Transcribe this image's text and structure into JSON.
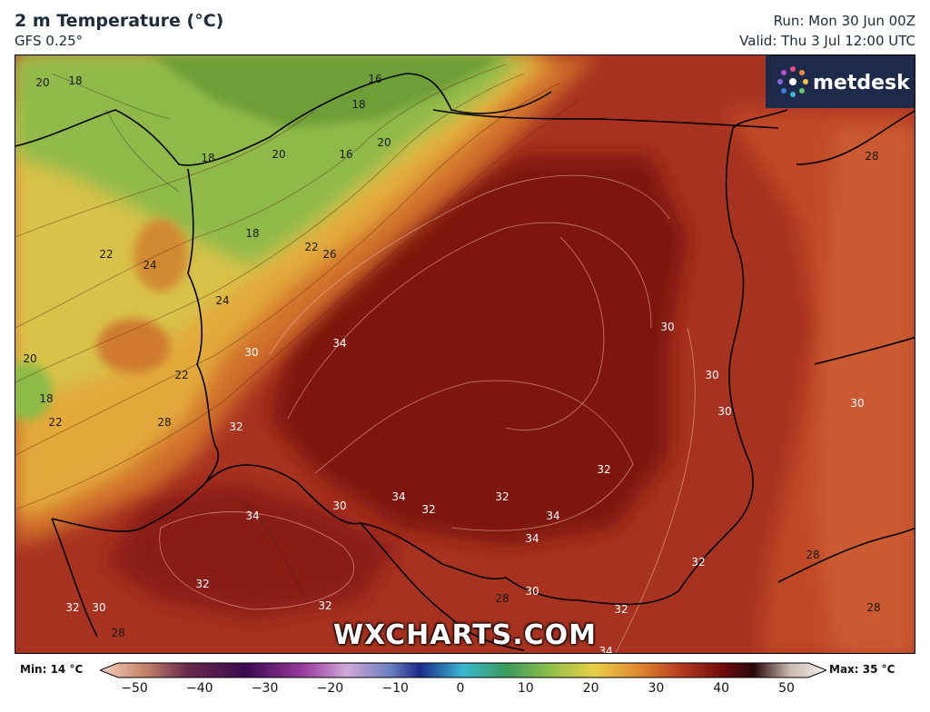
{
  "header": {
    "title": "2 m Temperature (°C)",
    "model": "GFS 0.25°",
    "run": "Run: Mon 30 Jun 00Z",
    "valid": "Valid: Thu 3 Jul 12:00 UTC"
  },
  "branding": {
    "logo_text": "metdesk",
    "watermark": "WXCHARTS.COM"
  },
  "colorbar": {
    "min_label": "Min: 14 °C",
    "max_label": "Max: 35 °C",
    "ticks": [
      "−50",
      "−40",
      "−30",
      "−20",
      "−10",
      "0",
      "10",
      "20",
      "30",
      "40",
      "50"
    ]
  },
  "isotherm_labels": [
    {
      "text": "20",
      "color": "dark"
    },
    {
      "text": "18",
      "color": "dark"
    },
    {
      "text": "16",
      "color": "dark"
    },
    {
      "text": "18",
      "color": "dark"
    },
    {
      "text": "20",
      "color": "dark"
    },
    {
      "text": "16",
      "color": "dark"
    },
    {
      "text": "20",
      "color": "dark"
    },
    {
      "text": "18",
      "color": "dark"
    },
    {
      "text": "18",
      "color": "dark"
    },
    {
      "text": "22",
      "color": "dark"
    },
    {
      "text": "26",
      "color": "dark"
    },
    {
      "text": "22",
      "color": "dark"
    },
    {
      "text": "24",
      "color": "dark"
    },
    {
      "text": "24",
      "color": "dark"
    },
    {
      "text": "20",
      "color": "dark"
    },
    {
      "text": "18",
      "color": "dark"
    },
    {
      "text": "22",
      "color": "dark"
    },
    {
      "text": "22",
      "color": "dark"
    },
    {
      "text": "28",
      "color": "dark"
    },
    {
      "text": "30",
      "color": "light"
    },
    {
      "text": "34",
      "color": "light"
    },
    {
      "text": "32",
      "color": "light"
    },
    {
      "text": "30",
      "color": "light"
    },
    {
      "text": "30",
      "color": "light"
    },
    {
      "text": "30",
      "color": "light"
    },
    {
      "text": "30",
      "color": "light"
    },
    {
      "text": "28",
      "color": "dark"
    },
    {
      "text": "32",
      "color": "light"
    },
    {
      "text": "34",
      "color": "light"
    },
    {
      "text": "32",
      "color": "light"
    },
    {
      "text": "32",
      "color": "light"
    },
    {
      "text": "34",
      "color": "light"
    },
    {
      "text": "34",
      "color": "light"
    },
    {
      "text": "30",
      "color": "light"
    },
    {
      "text": "34",
      "color": "light"
    },
    {
      "text": "32",
      "color": "light"
    },
    {
      "text": "32",
      "color": "light"
    },
    {
      "text": "32",
      "color": "light"
    },
    {
      "text": "30",
      "color": "light"
    },
    {
      "text": "28",
      "color": "dark"
    },
    {
      "text": "32",
      "color": "light"
    },
    {
      "text": "30",
      "color": "light"
    },
    {
      "text": "32",
      "color": "light"
    },
    {
      "text": "28",
      "color": "dark"
    },
    {
      "text": "28",
      "color": "dark"
    },
    {
      "text": "28",
      "color": "dark"
    },
    {
      "text": "34",
      "color": "light"
    }
  ]
}
